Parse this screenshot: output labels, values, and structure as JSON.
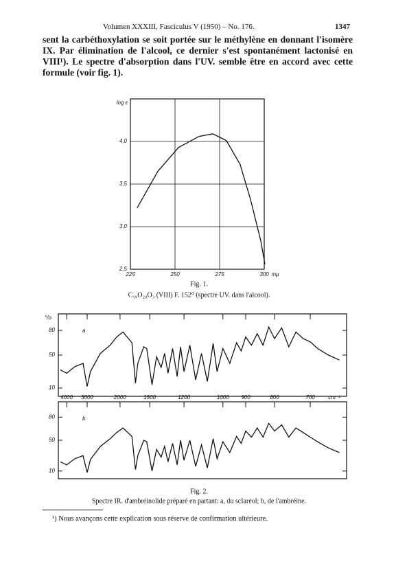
{
  "header": {
    "running_title": "Volumen XXXIII, Fasciculus V (1950) – No. 176.",
    "page_number": "1347"
  },
  "body": {
    "paragraph": "sent la carbéthoxylation se soit portée sur le méthylène en donnant l'isomère IX. Par élimination de l'alcool, ce dernier s'est spontané­ment lactonisé en VIII¹). Le spectre d'absorption dans l'UV. semble être en accord avec cette formule (voir fig. 1)."
  },
  "chart_data": [
    {
      "type": "line",
      "title": "Fig. 1.",
      "subtitle": "C₁₉O₂₀O₃ (VIII) F. 152⁰ (spectre UV. dans l'alcool).",
      "y_label": "log ε",
      "x_unit": "mμ",
      "grid": true,
      "color": "#111111",
      "x": [
        228.8,
        240.4,
        252,
        263.5,
        271.2,
        278.8,
        286.5,
        292.3,
        298,
        300.4
      ],
      "values": [
        3.22,
        3.65,
        3.93,
        4.06,
        4.09,
        4.01,
        3.73,
        3.32,
        2.84,
        2.56
      ],
      "xlim": [
        225,
        300
      ],
      "ylim": [
        2.5,
        4.5
      ],
      "xticks": [
        225,
        250,
        275,
        300
      ],
      "yticks": [
        {
          "value": 2.5,
          "label": "2,5"
        },
        {
          "value": 3.0,
          "label": "3,0"
        },
        {
          "value": 3.5,
          "label": "3,5"
        },
        {
          "value": 4.0,
          "label": "4,0"
        }
      ]
    },
    {
      "type": "line",
      "annotation": "a",
      "y_label": "°/o",
      "color": "#111111",
      "x": [
        4300,
        4000,
        3600,
        3200,
        3000,
        2900,
        2600,
        2300,
        2100,
        1950,
        1800,
        1740,
        1700,
        1600,
        1550,
        1480,
        1440,
        1400,
        1370,
        1340,
        1300,
        1260,
        1230,
        1200,
        1170,
        1140,
        1110,
        1080,
        1050,
        1030,
        1000,
        970,
        940,
        920,
        900,
        880,
        860,
        840,
        820,
        800,
        780,
        760,
        740,
        720,
        700,
        680,
        650,
        620
      ],
      "values": [
        32,
        28,
        36,
        40,
        12,
        30,
        52,
        62,
        72,
        78,
        65,
        16,
        40,
        60,
        58,
        14,
        48,
        35,
        52,
        28,
        58,
        24,
        60,
        30,
        62,
        20,
        52,
        18,
        64,
        30,
        58,
        40,
        65,
        55,
        72,
        62,
        76,
        62,
        84,
        70,
        83,
        60,
        78,
        70,
        66,
        58,
        50,
        44
      ],
      "xlim": [
        4400,
        600
      ],
      "ylim": [
        0,
        100
      ],
      "xticks": [
        4000,
        3000,
        2000,
        1500,
        1200,
        1000,
        900,
        800,
        700
      ],
      "yticks": [
        10,
        50,
        80
      ]
    },
    {
      "type": "line",
      "annotation": "b",
      "x_unit": "cm⁻¹",
      "color": "#111111",
      "x": [
        4300,
        4000,
        3600,
        3200,
        3000,
        2900,
        2600,
        2300,
        2100,
        1950,
        1800,
        1740,
        1700,
        1600,
        1550,
        1480,
        1440,
        1400,
        1370,
        1340,
        1300,
        1260,
        1230,
        1200,
        1170,
        1140,
        1110,
        1080,
        1050,
        1030,
        1000,
        970,
        940,
        920,
        900,
        880,
        860,
        840,
        820,
        800,
        780,
        760,
        740,
        720,
        700,
        680,
        650,
        620
      ],
      "values": [
        22,
        18,
        26,
        30,
        8,
        25,
        42,
        52,
        60,
        66,
        55,
        12,
        30,
        50,
        48,
        10,
        38,
        28,
        42,
        22,
        46,
        18,
        50,
        24,
        50,
        16,
        44,
        14,
        52,
        26,
        48,
        34,
        55,
        46,
        62,
        54,
        66,
        54,
        72,
        62,
        70,
        54,
        66,
        60,
        54,
        48,
        40,
        34
      ],
      "xlim": [
        4400,
        600
      ],
      "ylim": [
        0,
        100
      ],
      "xticks": [
        4000,
        3000,
        2000,
        1500,
        1200,
        1000,
        900,
        800,
        700
      ],
      "yticks": [
        10,
        50,
        80
      ]
    }
  ],
  "figure_2": {
    "title": "Fig. 2.",
    "caption": "Spectre IR. d'ambréinolide préparé en partant: a, du scIaréol; b, de l'ambréine."
  },
  "footnote": "¹) Nous avançons cette explication sous réserve de confirmation ultérieure."
}
